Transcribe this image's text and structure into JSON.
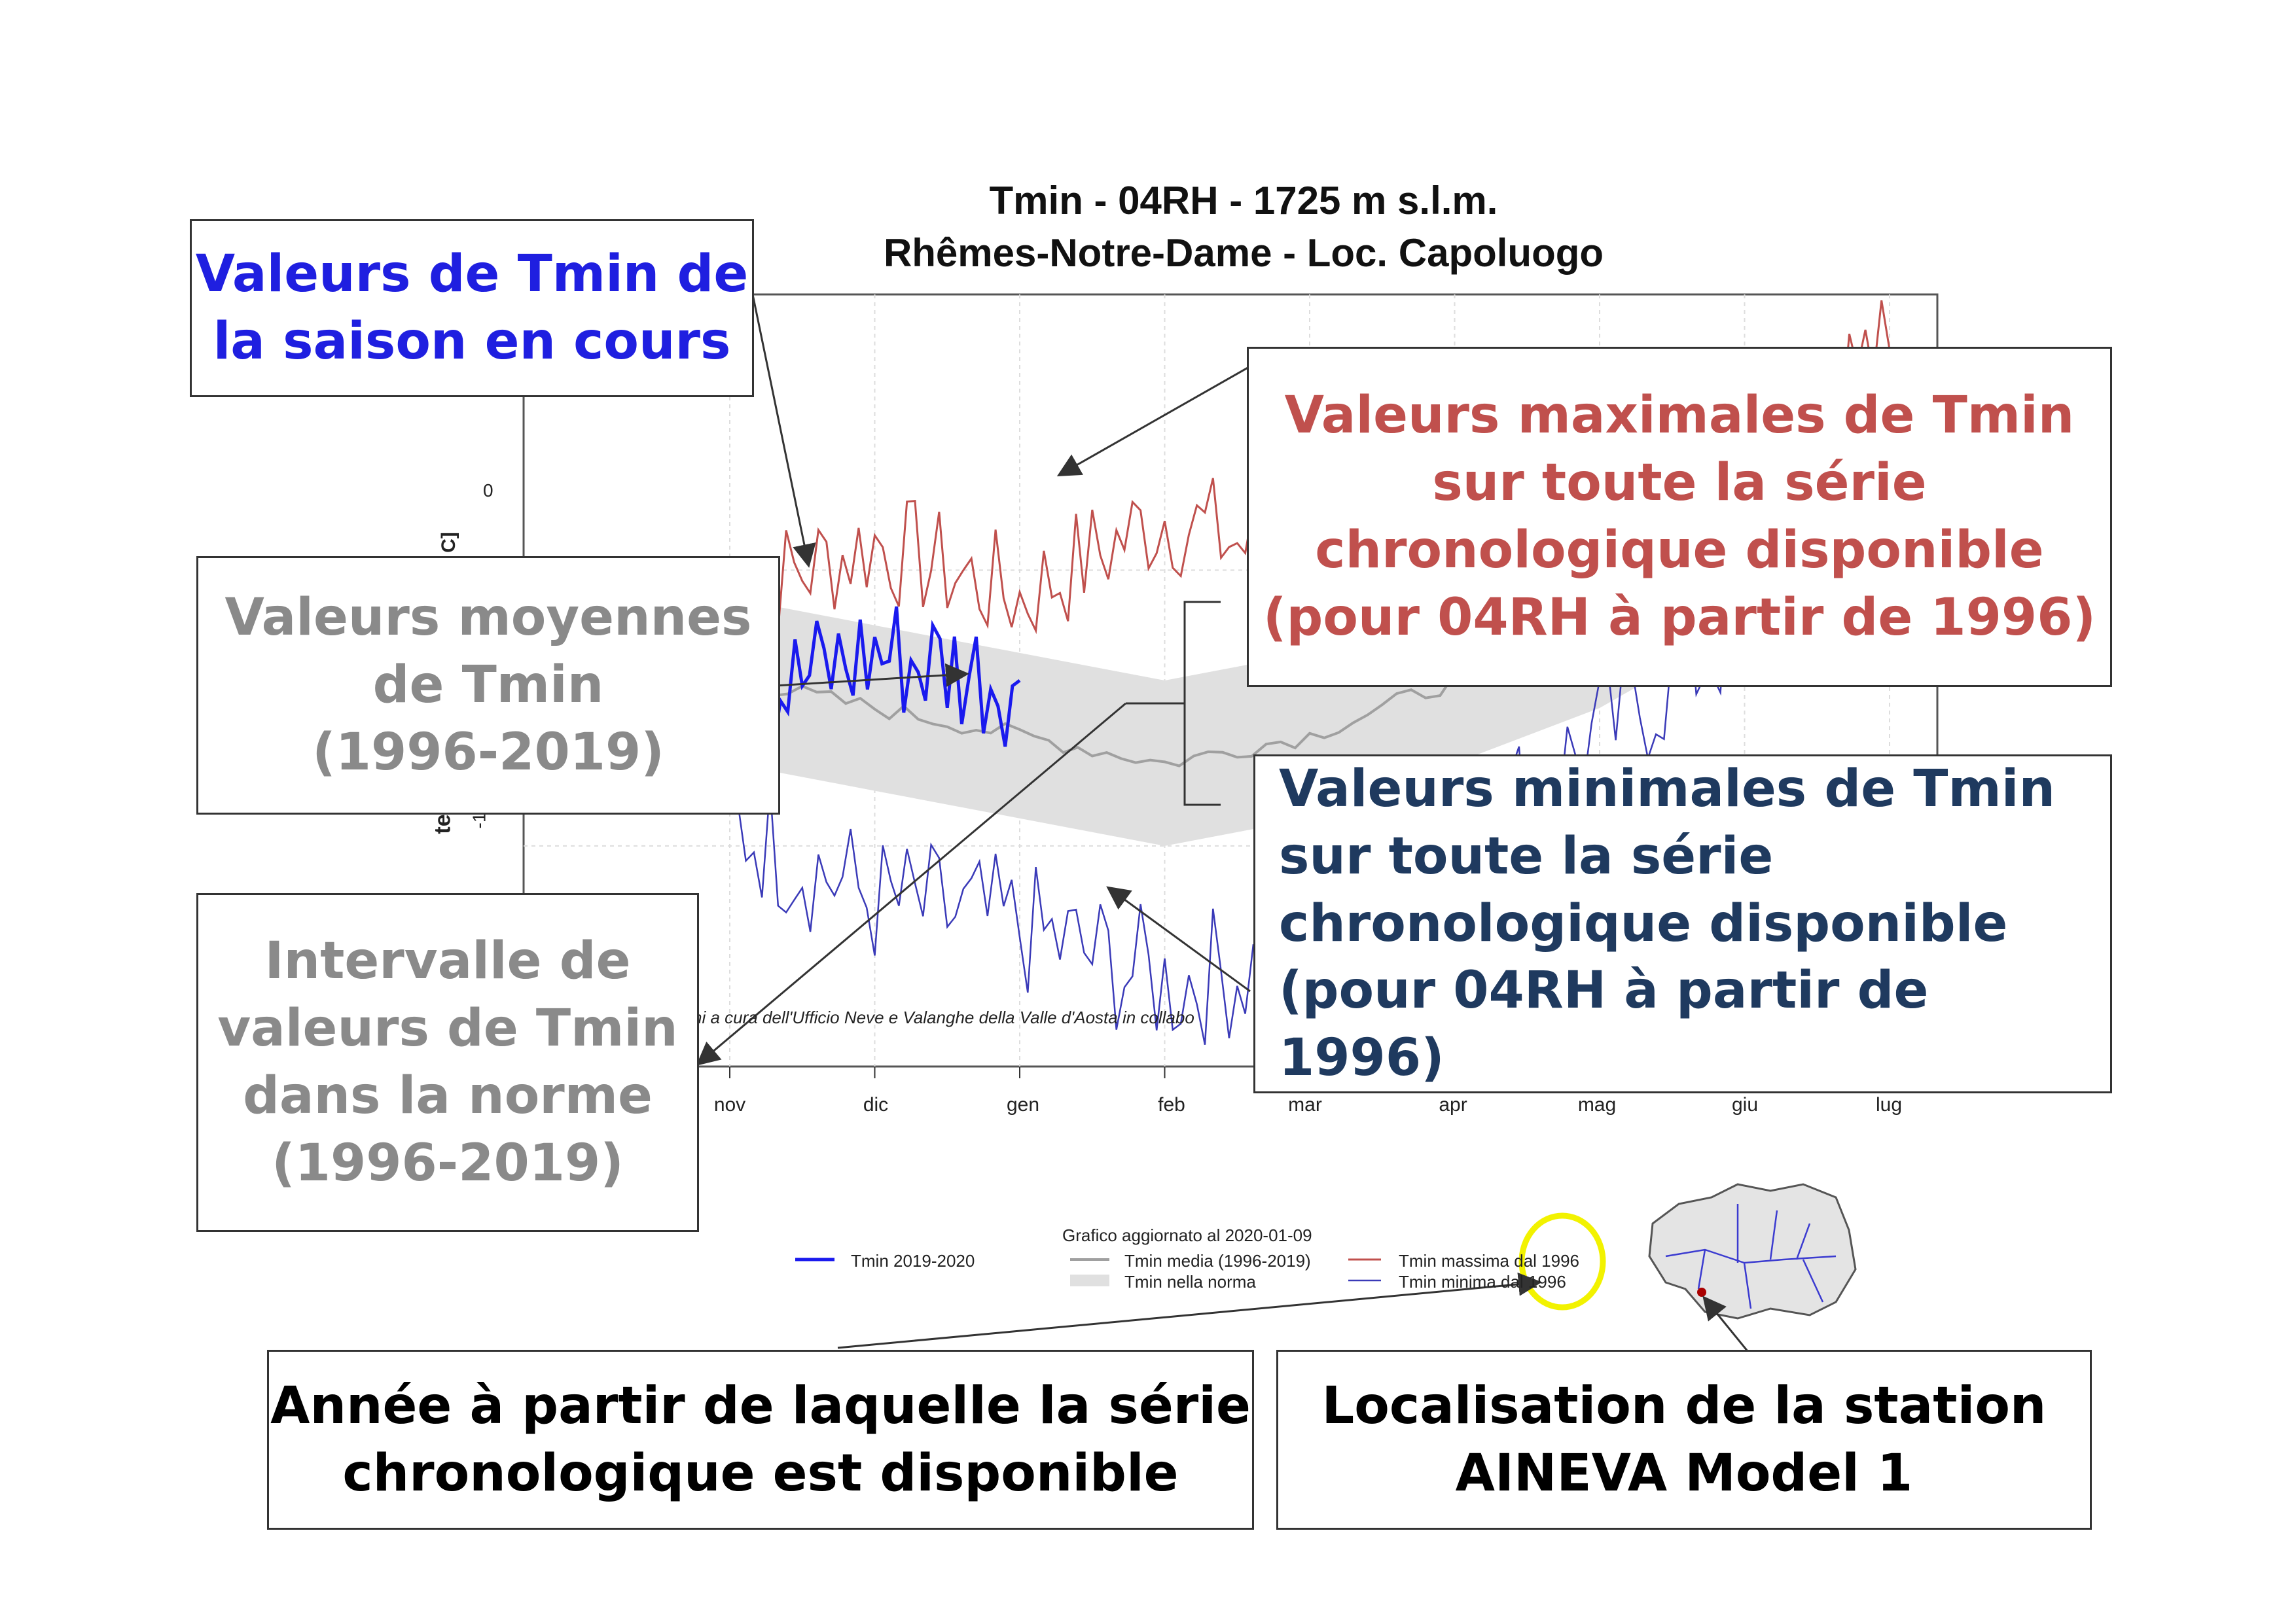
{
  "chart": {
    "title_line1": "Tmin - 04RH - 1725 m s.l.m.",
    "title_line2": "Rhêmes-Notre-Dame - Loc. Capoluogo",
    "y_tick_zero": "0",
    "y_tick_partial": "-1",
    "ylabel_fragment_1": "te",
    "ylabel_fragment_2": "C]",
    "credit_fragment": "ni a cura dell'Ufficio Neve e Valanghe della Valle d'Aosta in collabo",
    "months": [
      "nov",
      "dic",
      "gen",
      "feb",
      "mar",
      "apr",
      "mag",
      "giu",
      "lug"
    ]
  },
  "legend": {
    "updated": "Grafico aggiornato al 2020-01-09",
    "current": "Tmin 2019-2020",
    "mean": "Tmin media (1996-2019)",
    "norm": "Tmin nella norma",
    "max": "Tmin massima dal 1996",
    "min": "Tmin minima dal 1996"
  },
  "callouts": {
    "current_season": [
      "Valeurs de Tmin de",
      "la saison en cours"
    ],
    "max_values": [
      "Valeurs maximales de Tmin",
      "sur toute la série",
      "chronologique disponible",
      "(pour 04RH à partir de 1996)"
    ],
    "mean_values": [
      "Valeurs moyennes",
      "de Tmin",
      "(1996-2019)"
    ],
    "min_values": [
      "Valeurs minimales de Tmin",
      "sur toute la série",
      "chronologique disponible",
      "(pour 04RH à partir de 1996)"
    ],
    "norm_range": [
      "Intervalle de",
      "valeurs de Tmin",
      "dans la norme",
      "(1996-2019)"
    ],
    "start_year": [
      "Année à partir de laquelle la série",
      "chronologique est disponible"
    ],
    "station": [
      "Localisation de la station",
      "AINEVA Model 1"
    ]
  },
  "colors": {
    "current": "#1a1aee",
    "max": "#c0504d",
    "min": "#3a3ab8",
    "mean": "#a0a0a0",
    "norm_band": "#e0e0e0",
    "callout_blue": "#1f1fe0",
    "callout_red": "#c0504d",
    "callout_gray": "#8a8a8a",
    "callout_navy": "#1f3a5f",
    "highlight_circle": "#f2f200"
  },
  "chart_data": {
    "type": "line",
    "title": "Tmin - 04RH - 1725 m s.l.m.",
    "subtitle": "Rhêmes-Notre-Dame - Loc. Capoluogo",
    "x_categories": [
      "nov",
      "dic",
      "gen",
      "feb",
      "mar",
      "apr",
      "mag",
      "giu",
      "lug"
    ],
    "series": [
      {
        "name": "Tmin massima dal 1996",
        "values": [
          -1,
          1,
          -1,
          2,
          0,
          3,
          4,
          6,
          8
        ]
      },
      {
        "name": "Tmin media (1996-2019)",
        "values": [
          -4,
          -5,
          -6,
          -7,
          -6,
          -4,
          -2,
          1,
          3
        ]
      },
      {
        "name": "Tmin minima dal 1996",
        "values": [
          -9,
          -12,
          -13,
          -15,
          -14,
          -10,
          -6,
          -2,
          0
        ]
      },
      {
        "name": "Tmin 2019-2020",
        "values": [
          -5,
          -3,
          -4
        ]
      }
    ]
  }
}
